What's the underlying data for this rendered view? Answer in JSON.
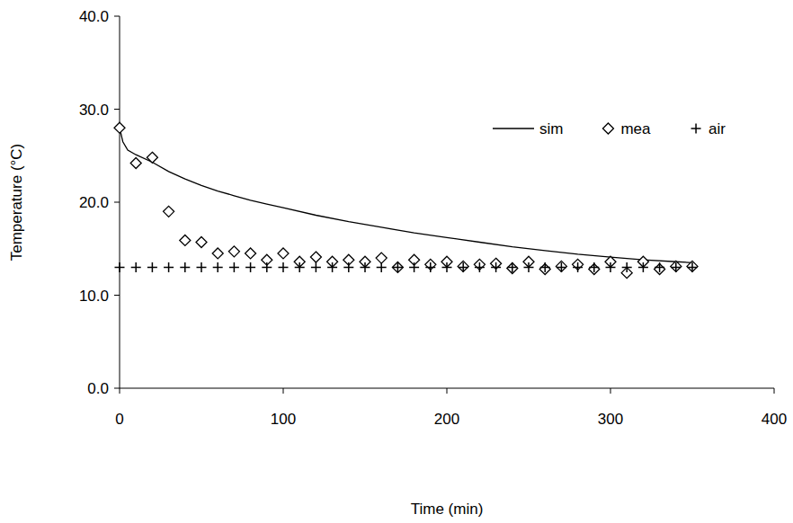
{
  "chart_data": {
    "type": "line",
    "x_label": "Time (min)",
    "y_label": "Temperature (°C)",
    "xlim": [
      0,
      400
    ],
    "xticks": [
      0,
      100,
      200,
      300,
      400
    ],
    "ylim": [
      0,
      40
    ],
    "yticks": [
      {
        "value": 0,
        "label": "0.0"
      },
      {
        "value": 10,
        "label": "10.0"
      },
      {
        "value": 20,
        "label": "20.0"
      },
      {
        "value": 30,
        "label": "30.0"
      },
      {
        "value": 40,
        "label": "40.0"
      }
    ],
    "grid": false,
    "legend": "upper right",
    "series": [
      {
        "name": "sim",
        "type": "line",
        "color": "#000000",
        "line_style": "solid",
        "x": [
          0,
          2,
          5,
          10,
          20,
          30,
          40,
          50,
          60,
          70,
          80,
          90,
          100,
          120,
          140,
          160,
          180,
          200,
          220,
          240,
          260,
          280,
          300,
          320,
          340,
          350
        ],
        "values": [
          28,
          26.5,
          25.6,
          25.1,
          24.3,
          23.3,
          22.5,
          21.8,
          21.2,
          20.7,
          20.2,
          19.8,
          19.4,
          18.6,
          17.9,
          17.3,
          16.7,
          16.2,
          15.7,
          15.2,
          14.8,
          14.4,
          14.1,
          13.8,
          13.6,
          13.5
        ]
      },
      {
        "name": "mea",
        "type": "scatter",
        "color": "#000000",
        "marker": "diamond",
        "x": [
          0,
          10,
          20,
          30,
          40,
          50,
          60,
          70,
          80,
          90,
          100,
          110,
          120,
          130,
          140,
          150,
          160,
          170,
          180,
          190,
          200,
          210,
          220,
          230,
          240,
          250,
          260,
          270,
          280,
          290,
          300,
          310,
          320,
          330,
          340,
          350
        ],
        "values": [
          28,
          24.2,
          24.8,
          19,
          15.9,
          15.7,
          14.5,
          14.7,
          14.5,
          13.8,
          14.5,
          13.6,
          14.1,
          13.6,
          13.8,
          13.6,
          14,
          13,
          13.8,
          13.3,
          13.6,
          13.1,
          13.3,
          13.4,
          12.9,
          13.6,
          12.8,
          13.1,
          13.3,
          12.8,
          13.6,
          12.4,
          13.6,
          12.8,
          13.1,
          13.1
        ]
      },
      {
        "name": "air",
        "type": "scatter",
        "color": "#000000",
        "marker": "plus",
        "x": [
          0,
          10,
          20,
          30,
          40,
          50,
          60,
          70,
          80,
          90,
          100,
          110,
          120,
          130,
          140,
          150,
          160,
          170,
          180,
          190,
          200,
          210,
          220,
          230,
          240,
          250,
          260,
          270,
          280,
          290,
          300,
          310,
          320,
          330,
          340,
          350
        ],
        "values": [
          13,
          13,
          13,
          13,
          13,
          13,
          13,
          13,
          13,
          13,
          13,
          13,
          13,
          13,
          13,
          13,
          13,
          13,
          13,
          13,
          13,
          13,
          13,
          13,
          13,
          13,
          13,
          13,
          13,
          13,
          13,
          13,
          13,
          13,
          13,
          13
        ]
      }
    ]
  }
}
